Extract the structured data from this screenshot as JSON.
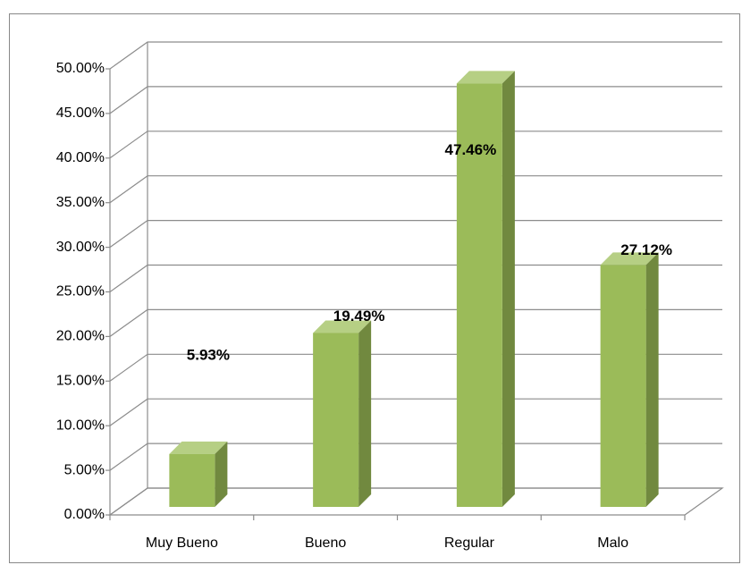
{
  "chart_data": {
    "type": "bar3d",
    "categories": [
      "Muy Bueno",
      "Bueno",
      "Regular",
      "Malo"
    ],
    "values": [
      5.93,
      19.49,
      47.46,
      27.12
    ],
    "value_labels": [
      "5.93%",
      "19.49%",
      "47.46%",
      "27.12%"
    ],
    "color": "#9bbb59",
    "ylim": [
      0,
      50
    ],
    "yticks": [
      {
        "value": 0,
        "label": "0.00%"
      },
      {
        "value": 5,
        "label": "5.00%"
      },
      {
        "value": 10,
        "label": "10.00%"
      },
      {
        "value": 15,
        "label": "15.00%"
      },
      {
        "value": 20,
        "label": "20.00%"
      },
      {
        "value": 25,
        "label": "25.00%"
      },
      {
        "value": 30,
        "label": "30.00%"
      },
      {
        "value": 35,
        "label": "35.00%"
      },
      {
        "value": 40,
        "label": "40.00%"
      },
      {
        "value": 45,
        "label": "45.00%"
      },
      {
        "value": 50,
        "label": "50.00%"
      }
    ],
    "grid": true
  }
}
